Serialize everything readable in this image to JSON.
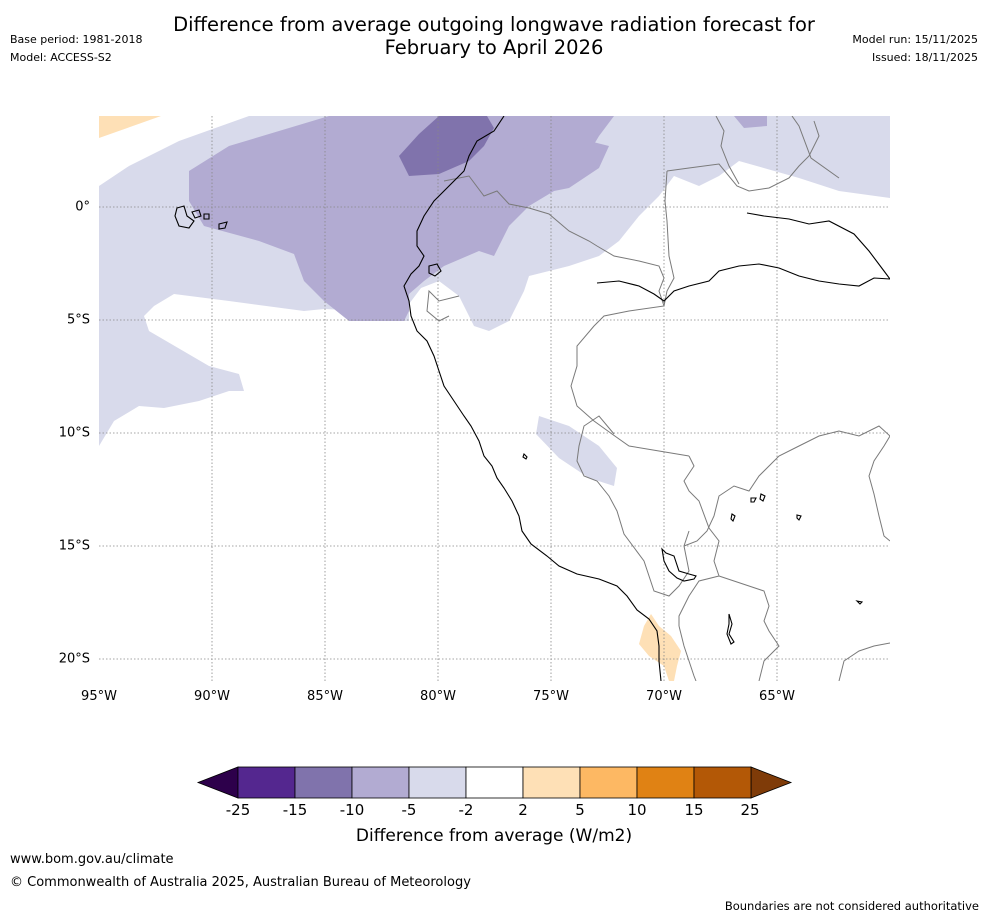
{
  "header": {
    "title_line1": "Difference from average outgoing longwave radiation forecast for",
    "title_line2": "February to April 2026",
    "base_period": "Base period: 1981-2018",
    "model": "Model: ACCESS-S2",
    "model_run": "Model run: 15/11/2025",
    "issued": "Issued: 18/11/2025"
  },
  "map": {
    "x_ticks": [
      "95°W",
      "90°W",
      "85°W",
      "80°W",
      "75°W",
      "70°W",
      "65°W"
    ],
    "y_ticks": [
      "0°",
      "5°S",
      "10°S",
      "15°S",
      "20°S"
    ]
  },
  "legend": {
    "title": "Difference from average (W/m2)",
    "labels": [
      "-25",
      "-15",
      "-10",
      "-5",
      "-2",
      "2",
      "5",
      "10",
      "15",
      "25"
    ],
    "colors": [
      "#54278f",
      "#8073ac",
      "#b2abd2",
      "#d8daeb",
      "#ffffff",
      "#fee0b6",
      "#fdb863",
      "#e08214",
      "#b35806"
    ],
    "low_extend_color": "#2d004b",
    "high_extend_color": "#7f3b08"
  },
  "footer": {
    "website": "www.bom.gov.au/climate",
    "copyright": "© Commonwealth of Australia 2025, Australian Bureau of Meteorology",
    "disclaimer": "Boundaries are not considered authoritative"
  }
}
